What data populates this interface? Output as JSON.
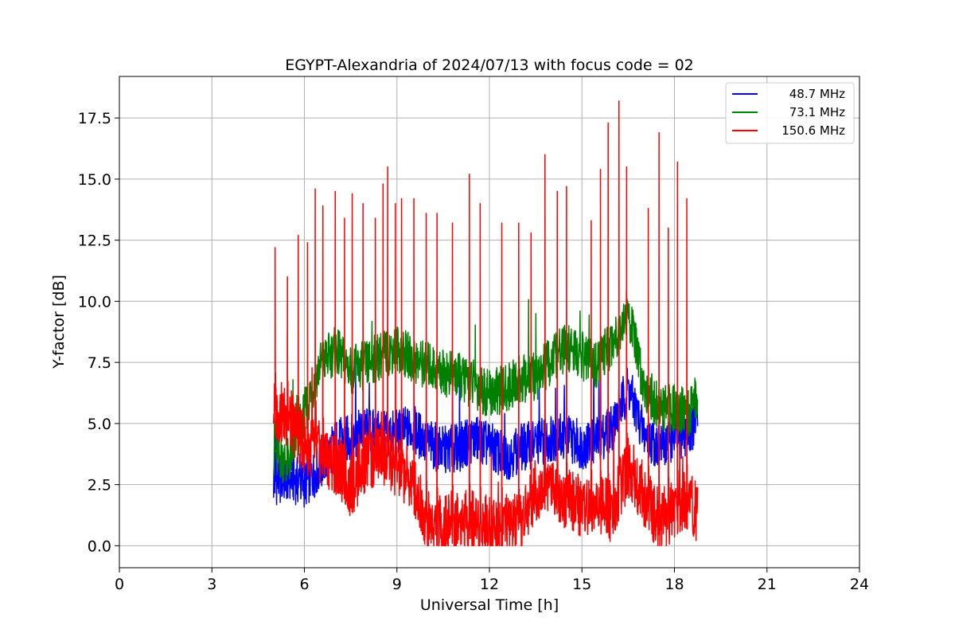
{
  "chart_data": {
    "type": "line",
    "title": "EGYPT-Alexandria of 2024/07/13 with focus code = 02",
    "xlabel": "Universal Time [h]",
    "ylabel": "Y-factor [dB]",
    "xlim": [
      0,
      24
    ],
    "ylim": [
      -0.9,
      19.2
    ],
    "xticks": [
      0,
      3,
      6,
      9,
      12,
      15,
      18,
      21,
      24
    ],
    "yticks": [
      0.0,
      2.5,
      5.0,
      7.5,
      10.0,
      12.5,
      15.0,
      17.5
    ],
    "xtick_labels": [
      "0",
      "3",
      "6",
      "9",
      "12",
      "15",
      "18",
      "21",
      "24"
    ],
    "ytick_labels": [
      "0.0",
      "2.5",
      "5.0",
      "7.5",
      "10.0",
      "12.5",
      "15.0",
      "17.5"
    ],
    "grid": true,
    "legend_position": "top-right",
    "series": [
      {
        "name": "48.7 MHz",
        "color": "#0000ff",
        "x": [
          5.0,
          5.5,
          6.0,
          6.5,
          7.0,
          7.5,
          8.0,
          8.5,
          9.0,
          9.5,
          10.0,
          10.5,
          11.0,
          11.5,
          12.0,
          12.5,
          13.0,
          13.5,
          14.0,
          14.5,
          15.0,
          15.5,
          16.0,
          16.5,
          17.0,
          17.5,
          18.0,
          18.5,
          18.75
        ],
        "y": [
          2.6,
          2.8,
          2.5,
          3.2,
          4.2,
          4.4,
          4.7,
          4.5,
          4.6,
          4.8,
          4.2,
          3.9,
          4.0,
          4.4,
          4.1,
          3.6,
          4.0,
          4.2,
          4.4,
          4.5,
          4.1,
          4.3,
          4.9,
          6.5,
          4.6,
          4.1,
          4.4,
          4.7,
          5.2
        ]
      },
      {
        "name": "73.1 MHz",
        "color": "#008000",
        "x": [
          5.0,
          5.5,
          6.0,
          6.5,
          7.0,
          7.5,
          8.0,
          8.5,
          9.0,
          9.5,
          10.0,
          10.5,
          11.0,
          11.5,
          12.0,
          12.5,
          13.0,
          13.5,
          14.0,
          14.5,
          15.0,
          15.5,
          16.0,
          16.5,
          17.0,
          17.5,
          18.0,
          18.5,
          18.75
        ],
        "y": [
          3.8,
          3.4,
          5.4,
          7.4,
          8.0,
          7.2,
          7.4,
          7.8,
          8.1,
          7.6,
          7.4,
          7.1,
          6.9,
          6.6,
          6.2,
          6.4,
          6.8,
          6.9,
          7.6,
          8.1,
          7.7,
          7.4,
          8.4,
          9.6,
          6.6,
          5.6,
          5.6,
          5.4,
          6.2
        ]
      },
      {
        "name": "150.6 MHz",
        "color": "#ff0000",
        "x": [
          5.0,
          5.5,
          6.0,
          6.5,
          7.0,
          7.5,
          8.0,
          8.5,
          9.0,
          9.5,
          10.0,
          10.5,
          11.0,
          11.5,
          12.0,
          12.5,
          13.0,
          13.5,
          14.0,
          14.5,
          15.0,
          15.5,
          16.0,
          16.5,
          17.0,
          17.5,
          18.0,
          18.5,
          18.75
        ],
        "y": [
          5.6,
          5.2,
          4.2,
          3.8,
          3.4,
          2.4,
          3.5,
          3.8,
          3.2,
          2.6,
          1.0,
          0.8,
          1.1,
          1.0,
          0.8,
          0.9,
          0.8,
          2.3,
          2.6,
          1.9,
          1.6,
          1.6,
          1.4,
          3.3,
          2.1,
          1.0,
          1.5,
          1.9,
          1.3
        ],
        "spikes": [
          {
            "x": 5.05,
            "y": 12.2
          },
          {
            "x": 5.45,
            "y": 11.0
          },
          {
            "x": 5.8,
            "y": 12.7
          },
          {
            "x": 6.1,
            "y": 12.4
          },
          {
            "x": 6.35,
            "y": 14.6
          },
          {
            "x": 6.6,
            "y": 13.9
          },
          {
            "x": 7.0,
            "y": 14.5
          },
          {
            "x": 7.3,
            "y": 13.4
          },
          {
            "x": 7.55,
            "y": 14.4
          },
          {
            "x": 7.9,
            "y": 14.0
          },
          {
            "x": 8.3,
            "y": 13.4
          },
          {
            "x": 8.55,
            "y": 14.8
          },
          {
            "x": 8.7,
            "y": 15.5
          },
          {
            "x": 8.95,
            "y": 14.0
          },
          {
            "x": 9.15,
            "y": 14.2
          },
          {
            "x": 9.55,
            "y": 14.2
          },
          {
            "x": 9.95,
            "y": 13.6
          },
          {
            "x": 10.3,
            "y": 13.6
          },
          {
            "x": 10.8,
            "y": 13.2
          },
          {
            "x": 11.35,
            "y": 15.2
          },
          {
            "x": 11.7,
            "y": 14.0
          },
          {
            "x": 12.4,
            "y": 13.2
          },
          {
            "x": 12.95,
            "y": 13.2
          },
          {
            "x": 13.35,
            "y": 12.8
          },
          {
            "x": 13.8,
            "y": 16.0
          },
          {
            "x": 14.2,
            "y": 14.5
          },
          {
            "x": 14.5,
            "y": 14.7
          },
          {
            "x": 15.3,
            "y": 13.3
          },
          {
            "x": 15.6,
            "y": 15.4
          },
          {
            "x": 15.85,
            "y": 17.3
          },
          {
            "x": 16.2,
            "y": 18.2
          },
          {
            "x": 16.45,
            "y": 15.5
          },
          {
            "x": 17.15,
            "y": 13.8
          },
          {
            "x": 17.5,
            "y": 16.9
          },
          {
            "x": 17.8,
            "y": 13.0
          },
          {
            "x": 18.1,
            "y": 15.7
          },
          {
            "x": 18.4,
            "y": 14.2
          }
        ]
      }
    ]
  }
}
